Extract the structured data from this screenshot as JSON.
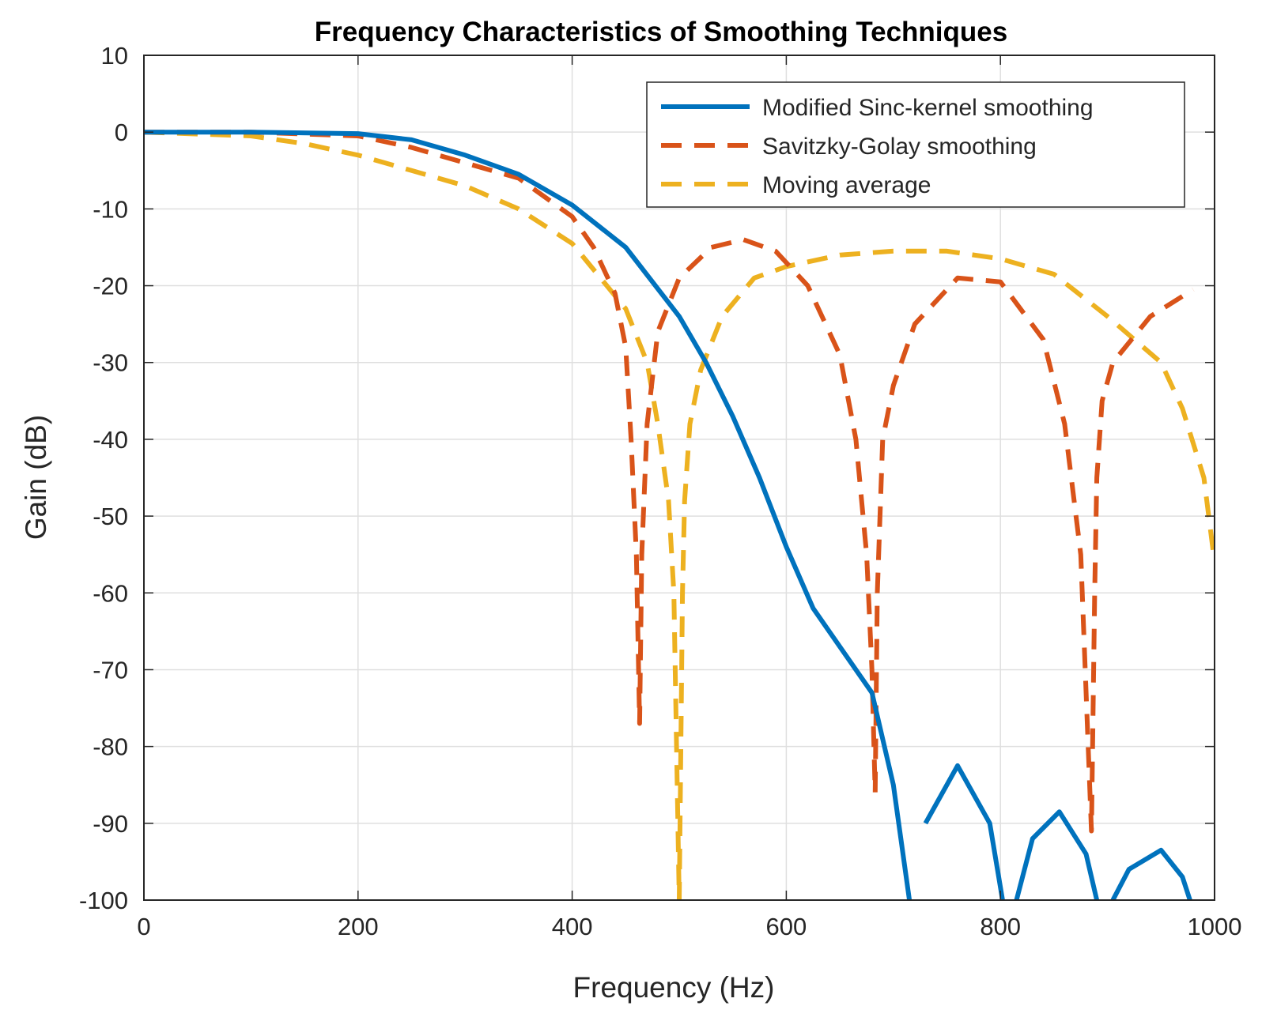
{
  "chart_data": {
    "type": "line",
    "title": "Frequency Characteristics of Smoothing Techniques",
    "xlabel": "Frequency (Hz)",
    "ylabel": "Gain (dB)",
    "xlim": [
      0,
      1000
    ],
    "ylim": [
      -100,
      10
    ],
    "xticks": [
      0,
      200,
      400,
      600,
      800,
      1000
    ],
    "yticks": [
      10,
      0,
      -10,
      -20,
      -30,
      -40,
      -50,
      -60,
      -70,
      -80,
      -90,
      -100
    ],
    "xtick_labels": [
      "0",
      "200",
      "400",
      "600",
      "800",
      "1000"
    ],
    "ytick_labels": [
      "10",
      "0",
      "-10",
      "-20",
      "-30",
      "-40",
      "-50",
      "-60",
      "-70",
      "-80",
      "-90",
      "-100"
    ],
    "grid": true,
    "legend_position": "top-right",
    "series": [
      {
        "name": "Modified Sinc-kernel smoothing",
        "color": "#0072BD",
        "style": "solid",
        "x": [
          0,
          100,
          200,
          250,
          300,
          350,
          400,
          450,
          500,
          525,
          550,
          575,
          600,
          625,
          650,
          680,
          700,
          715,
          716,
          730,
          760,
          790,
          802,
          803,
          815,
          830,
          855,
          880,
          890,
          891,
          905,
          920,
          950,
          970,
          977
        ],
        "y": [
          0,
          0,
          -0.2,
          -1,
          -3,
          -5.5,
          -9.5,
          -15,
          -24,
          -30,
          -37,
          -45,
          -54,
          -62,
          -67,
          -73,
          -85,
          -100,
          null,
          -90,
          -82.5,
          -90,
          -100,
          null,
          -100,
          -92,
          -88.5,
          -94,
          -100,
          null,
          -100,
          -96,
          -93.5,
          -97,
          -100
        ]
      },
      {
        "name": "Savitzky-Golay smoothing",
        "color": "#D95319",
        "style": "dashed",
        "x": [
          0,
          100,
          200,
          250,
          300,
          350,
          400,
          420,
          440,
          450,
          455,
          460,
          463,
          465,
          470,
          480,
          500,
          530,
          560,
          590,
          620,
          650,
          665,
          675,
          680,
          683,
          685,
          690,
          700,
          720,
          760,
          800,
          840,
          860,
          875,
          885,
          888,
          890,
          895,
          905,
          940,
          980
        ],
        "y": [
          0,
          0,
          -0.5,
          -2,
          -4,
          -6,
          -11,
          -15,
          -21,
          -28,
          -40,
          -55,
          -77,
          -55,
          -38,
          -26,
          -19,
          -15,
          -14,
          -15.5,
          -20,
          -29,
          -40,
          -55,
          -70,
          -86,
          -60,
          -40,
          -33,
          -25,
          -19,
          -19.5,
          -27,
          -38,
          -55,
          -91,
          -60,
          -45,
          -35,
          -30,
          -24,
          -20.5
        ]
      },
      {
        "name": "Moving average",
        "color": "#EDB120",
        "style": "dashed",
        "x": [
          0,
          100,
          150,
          200,
          250,
          300,
          350,
          400,
          450,
          470,
          480,
          490,
          495,
          500,
          503,
          505,
          510,
          520,
          540,
          570,
          600,
          650,
          700,
          750,
          800,
          850,
          900,
          950,
          970,
          990,
          1000
        ],
        "y": [
          0,
          -0.5,
          -1.5,
          -3,
          -5,
          -7,
          -10,
          -14.5,
          -23,
          -30,
          -38,
          -48,
          -60,
          -100,
          -60,
          -48,
          -38,
          -31,
          -24,
          -19,
          -17.5,
          -16,
          -15.5,
          -15.5,
          -16.5,
          -18.5,
          -24,
          -30,
          -36,
          -45,
          -56
        ]
      }
    ]
  }
}
